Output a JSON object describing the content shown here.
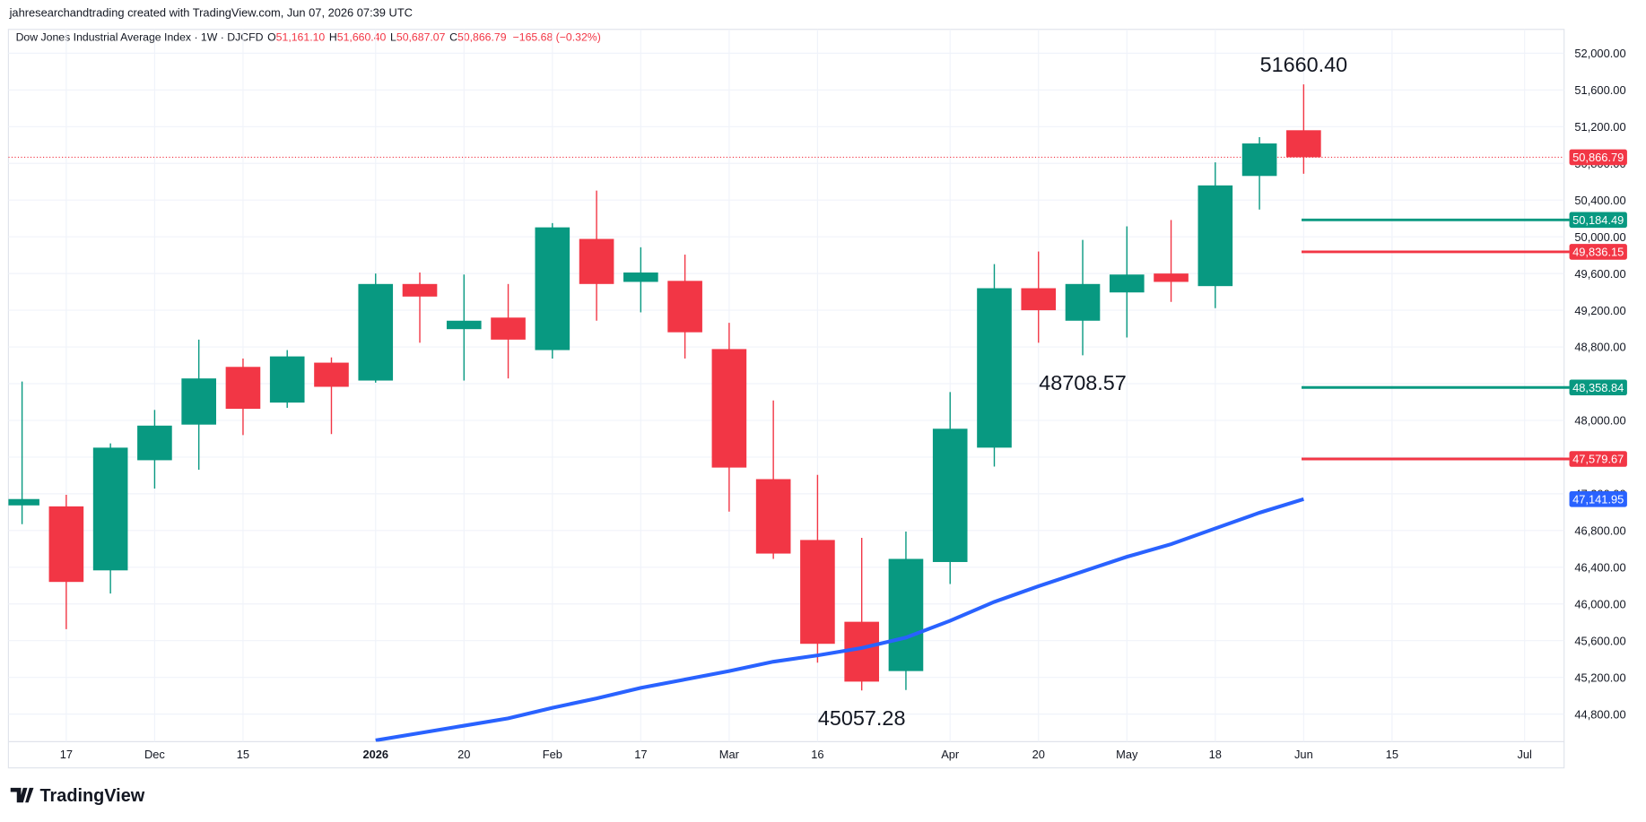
{
  "header": {
    "attribution": "jahresearchandtrading created with TradingView.com, Jun 07, 2026 07:39 UTC",
    "symbol": "Dow Jones Industrial Average Index · 1W · DJCFD",
    "o_label": "O",
    "open": "51,161.10",
    "h_label": "H",
    "high": "51,660.40",
    "l_label": "L",
    "low": "50,687.07",
    "c_label": "C",
    "close": "50,866.79",
    "change": "−165.68 (−0.32%)"
  },
  "chart_data": {
    "type": "candlestick",
    "categories": [
      null,
      "17",
      null,
      "Dec",
      null,
      "15",
      null,
      null,
      "2026",
      null,
      "20",
      null,
      "Feb",
      null,
      "17",
      null,
      "Mar",
      null,
      "16",
      null,
      null,
      "Apr",
      null,
      "20",
      null,
      "May",
      null,
      "18",
      null,
      "Jun",
      null,
      "15",
      null,
      null,
      "Jul"
    ],
    "open": [
      47074,
      47063,
      46366,
      47566,
      47954,
      48583,
      48194,
      48629,
      48434,
      49486,
      48994,
      49120,
      48766,
      49977,
      49509,
      49520,
      48777,
      47360,
      46697,
      45806,
      45269,
      46457,
      47703,
      49440,
      49086,
      49394,
      49600,
      49463,
      50663,
      51161.1,
      null,
      null,
      null,
      null,
      null
    ],
    "high": [
      48423,
      47189,
      47749,
      48114,
      48880,
      48674,
      48766,
      48686,
      49600,
      49611,
      49589,
      49486,
      50149,
      50503,
      49886,
      49806,
      49063,
      48217,
      47406,
      46720,
      46789,
      48309,
      49703,
      49840,
      49966,
      50114,
      50183,
      50811,
      51086,
      51660.4,
      null,
      null,
      null,
      null,
      null
    ],
    "low": [
      46869,
      45726,
      46114,
      47257,
      47463,
      47840,
      48137,
      47851,
      48411,
      48846,
      48434,
      48457,
      48674,
      49086,
      49177,
      48674,
      47006,
      46491,
      45360,
      45057.28,
      45063,
      46217,
      47497,
      48846,
      48708.57,
      48903,
      49291,
      49223,
      50297,
      50687.07,
      null,
      null,
      null,
      null,
      null
    ],
    "close": [
      47143,
      46240,
      47703,
      47943,
      48457,
      48126,
      48697,
      48366,
      49486,
      49349,
      49086,
      48880,
      50103,
      49486,
      49611,
      48960,
      47486,
      46549,
      45566,
      45154,
      46491,
      47909,
      49440,
      49200,
      49486,
      49589,
      49509,
      50560,
      51017,
      50866.79,
      null,
      null,
      null,
      null,
      null
    ],
    "up_color": "#089981",
    "down_color": "#f23645",
    "ylim": [
      44500,
      52260
    ],
    "yticks": [
      {
        "value": 44800,
        "label": "44,800.00"
      },
      {
        "value": 45200,
        "label": "45,200.00"
      },
      {
        "value": 45600,
        "label": "45,600.00"
      },
      {
        "value": 46000,
        "label": "46,000.00"
      },
      {
        "value": 46400,
        "label": "46,400.00"
      },
      {
        "value": 46800,
        "label": "46,800.00"
      },
      {
        "value": 47200,
        "label": "47,200.00"
      },
      {
        "value": 47600,
        "label": "47,600.00"
      },
      {
        "value": 48000,
        "label": "48,000.00"
      },
      {
        "value": 48400,
        "label": "48,400.00"
      },
      {
        "value": 48800,
        "label": "48,800.00"
      },
      {
        "value": 49200,
        "label": "49,200.00"
      },
      {
        "value": 49600,
        "label": "49,600.00"
      },
      {
        "value": 50000,
        "label": "50,000.00"
      },
      {
        "value": 50400,
        "label": "50,400.00"
      },
      {
        "value": 50800,
        "label": "50,800.00"
      },
      {
        "value": 51200,
        "label": "51,200.00"
      },
      {
        "value": 51600,
        "label": "51,600.00"
      },
      {
        "value": 52000,
        "label": "52,000.00"
      }
    ],
    "grid": true,
    "moving_average": {
      "color": "#2962ff",
      "values": [
        null,
        null,
        null,
        null,
        null,
        null,
        null,
        null,
        44514,
        44594,
        44674,
        44754,
        44869,
        44971,
        45086,
        45177,
        45269,
        45371,
        45440,
        45520,
        45634,
        45817,
        46023,
        46194,
        46354,
        46514,
        46651,
        46823,
        46994,
        47141.95,
        null,
        null,
        null,
        null,
        null
      ],
      "last_label": "47,141.95"
    },
    "last_price": {
      "value": 50866.79,
      "label": "50,866.79",
      "color": "#f23645"
    },
    "levels": [
      {
        "value": 50184.49,
        "label": "50,184.49",
        "color": "#089981"
      },
      {
        "value": 49836.15,
        "label": "49,836.15",
        "color": "#f23645"
      },
      {
        "value": 48358.84,
        "label": "48,358.84",
        "color": "#089981"
      },
      {
        "value": 47579.67,
        "label": "47,579.67",
        "color": "#f23645"
      }
    ],
    "annotations": [
      {
        "value": 51660.4,
        "label": "51660.40"
      },
      {
        "value": 48708.57,
        "label": "48708.57"
      },
      {
        "value": 45057.28,
        "label": "45057.28"
      }
    ]
  },
  "footer": {
    "brand": "TradingView"
  }
}
